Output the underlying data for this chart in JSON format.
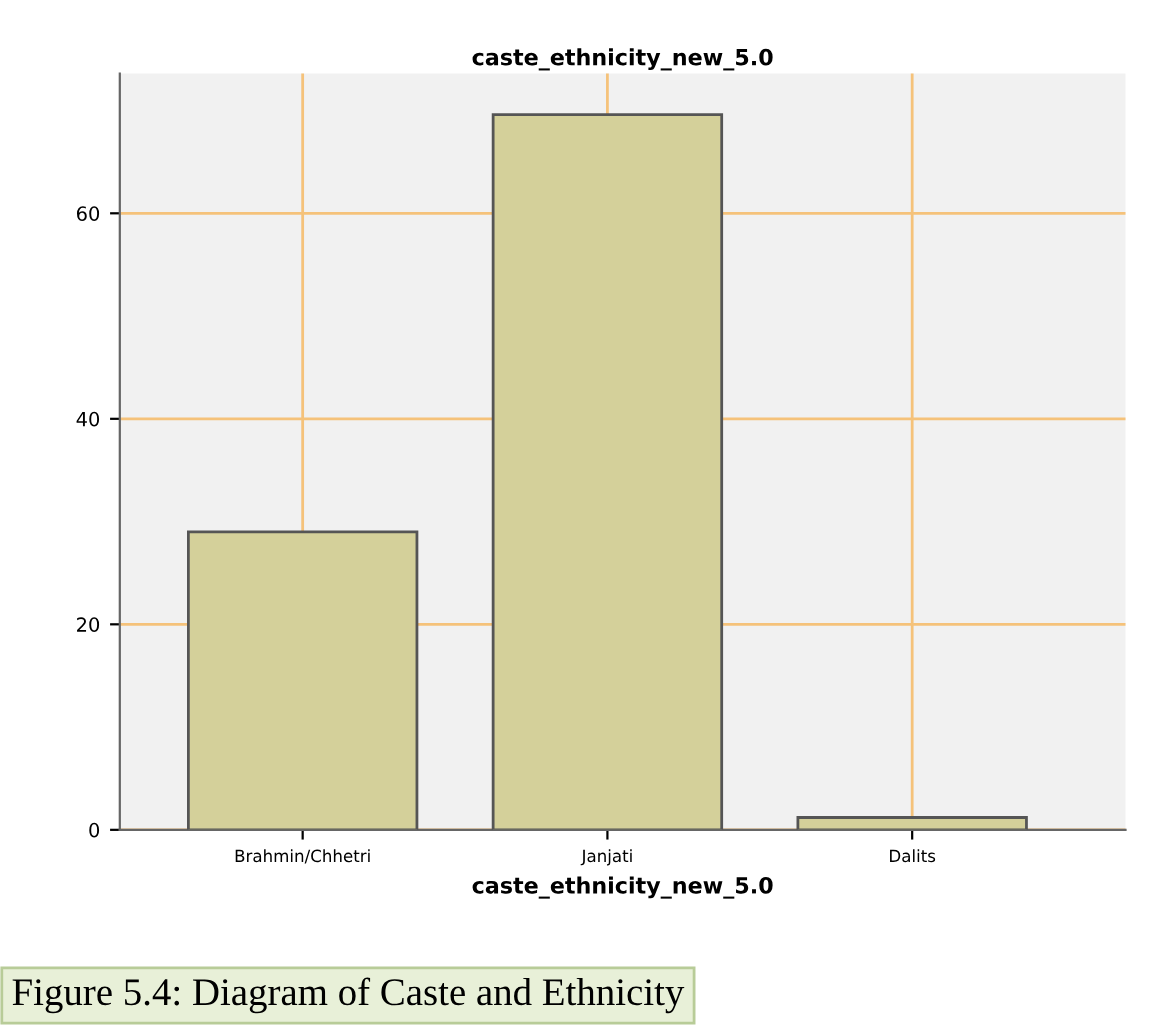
{
  "chart_data": {
    "type": "bar",
    "title": "caste_ethnicity_new_5.0",
    "xlabel": "caste_ethnicity_new_5.0",
    "categories": [
      "Brahmin/Chhetri",
      "Janjati",
      "Dalits"
    ],
    "values": [
      29.0,
      69.6,
      1.2
    ],
    "color": "#d4d09a",
    "ylim": [
      0,
      73.6
    ],
    "yticks": [
      0,
      20,
      40,
      60
    ],
    "grid": true,
    "annotations": [
      "Figure 5.4: Diagram of Caste and Ethnicity"
    ]
  }
}
